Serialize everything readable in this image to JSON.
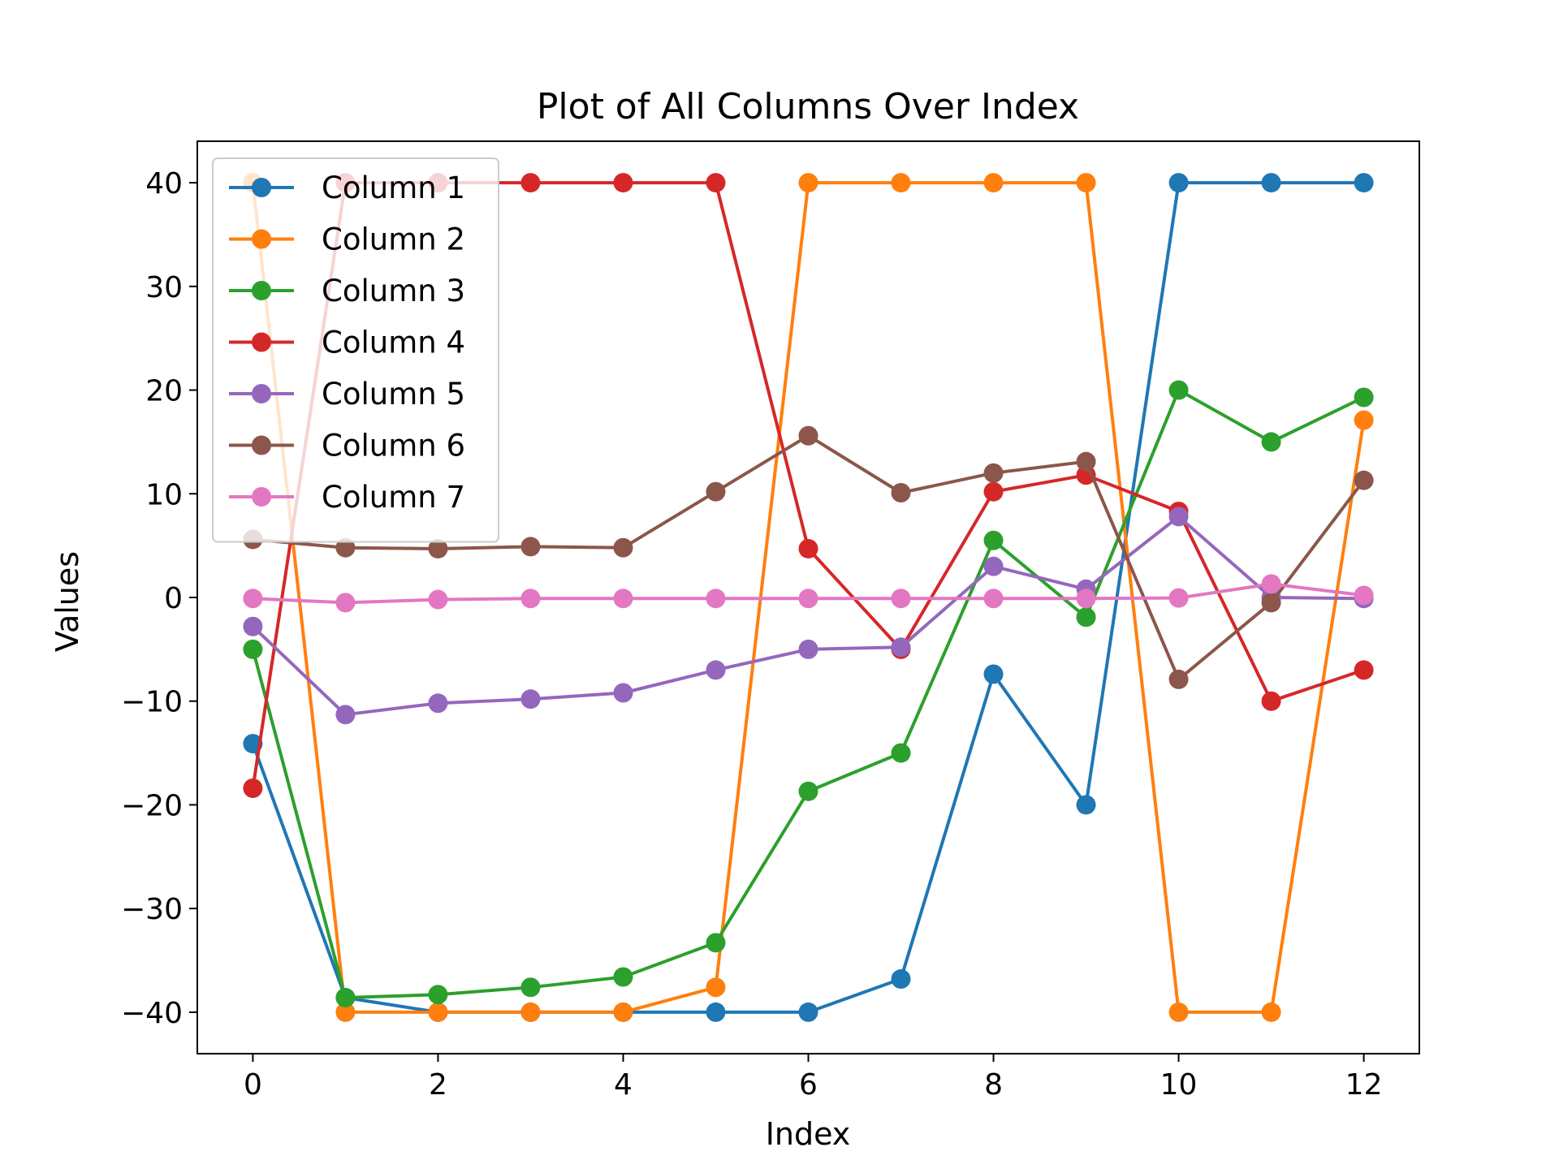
{
  "chart_data": {
    "type": "line",
    "title": "Plot of All Columns Over Index",
    "xlabel": "Index",
    "ylabel": "Values",
    "xlim": [
      -0.6,
      12.6
    ],
    "ylim": [
      -44,
      44
    ],
    "xticks": [
      0,
      2,
      4,
      6,
      8,
      10,
      12
    ],
    "yticks": [
      -40,
      -30,
      -20,
      -10,
      0,
      10,
      20,
      30,
      40
    ],
    "ytick_labels": [
      "−40",
      "−30",
      "−20",
      "−10",
      "0",
      "10",
      "20",
      "30",
      "40"
    ],
    "grid": false,
    "legend_position": "upper-left",
    "marker": "circle",
    "x": [
      0,
      1,
      2,
      3,
      4,
      5,
      6,
      7,
      8,
      9,
      10,
      11,
      12
    ],
    "series": [
      {
        "name": "Column 1",
        "color": "#1f77b4",
        "values": [
          -14.1,
          -38.6,
          -40,
          -40,
          -40,
          -40,
          -40,
          -36.8,
          -7.4,
          -20,
          40,
          40,
          40
        ]
      },
      {
        "name": "Column 2",
        "color": "#ff7f0e",
        "values": [
          40,
          -40,
          -40,
          -40,
          -40,
          -37.6,
          40,
          40,
          40,
          40,
          -40,
          -40,
          17.1
        ]
      },
      {
        "name": "Column 3",
        "color": "#2ca02c",
        "values": [
          -5,
          -38.6,
          -38.3,
          -37.6,
          -36.6,
          -33.3,
          -18.7,
          -15,
          5.5,
          -1.9,
          20,
          15,
          19.3
        ]
      },
      {
        "name": "Column 4",
        "color": "#d62728",
        "values": [
          -18.4,
          40,
          40,
          40,
          40,
          40,
          4.7,
          -5,
          10.2,
          11.8,
          8.3,
          -10,
          -7
        ]
      },
      {
        "name": "Column 5",
        "color": "#9467bd",
        "values": [
          -2.8,
          -11.3,
          -10.2,
          -9.8,
          -9.2,
          -7,
          -5,
          -4.8,
          3,
          0.8,
          7.8,
          0,
          -0.1
        ]
      },
      {
        "name": "Column 6",
        "color": "#8c564b",
        "values": [
          5.6,
          4.8,
          4.7,
          4.9,
          4.8,
          10.2,
          15.6,
          10.1,
          12,
          13.1,
          -7.9,
          -0.5,
          11.3
        ]
      },
      {
        "name": "Column 7",
        "color": "#e377c2",
        "values": [
          -0.1,
          -0.5,
          -0.2,
          -0.1,
          -0.1,
          -0.1,
          -0.1,
          -0.1,
          -0.1,
          -0.1,
          -0.05,
          1.3,
          0.2
        ]
      }
    ]
  }
}
